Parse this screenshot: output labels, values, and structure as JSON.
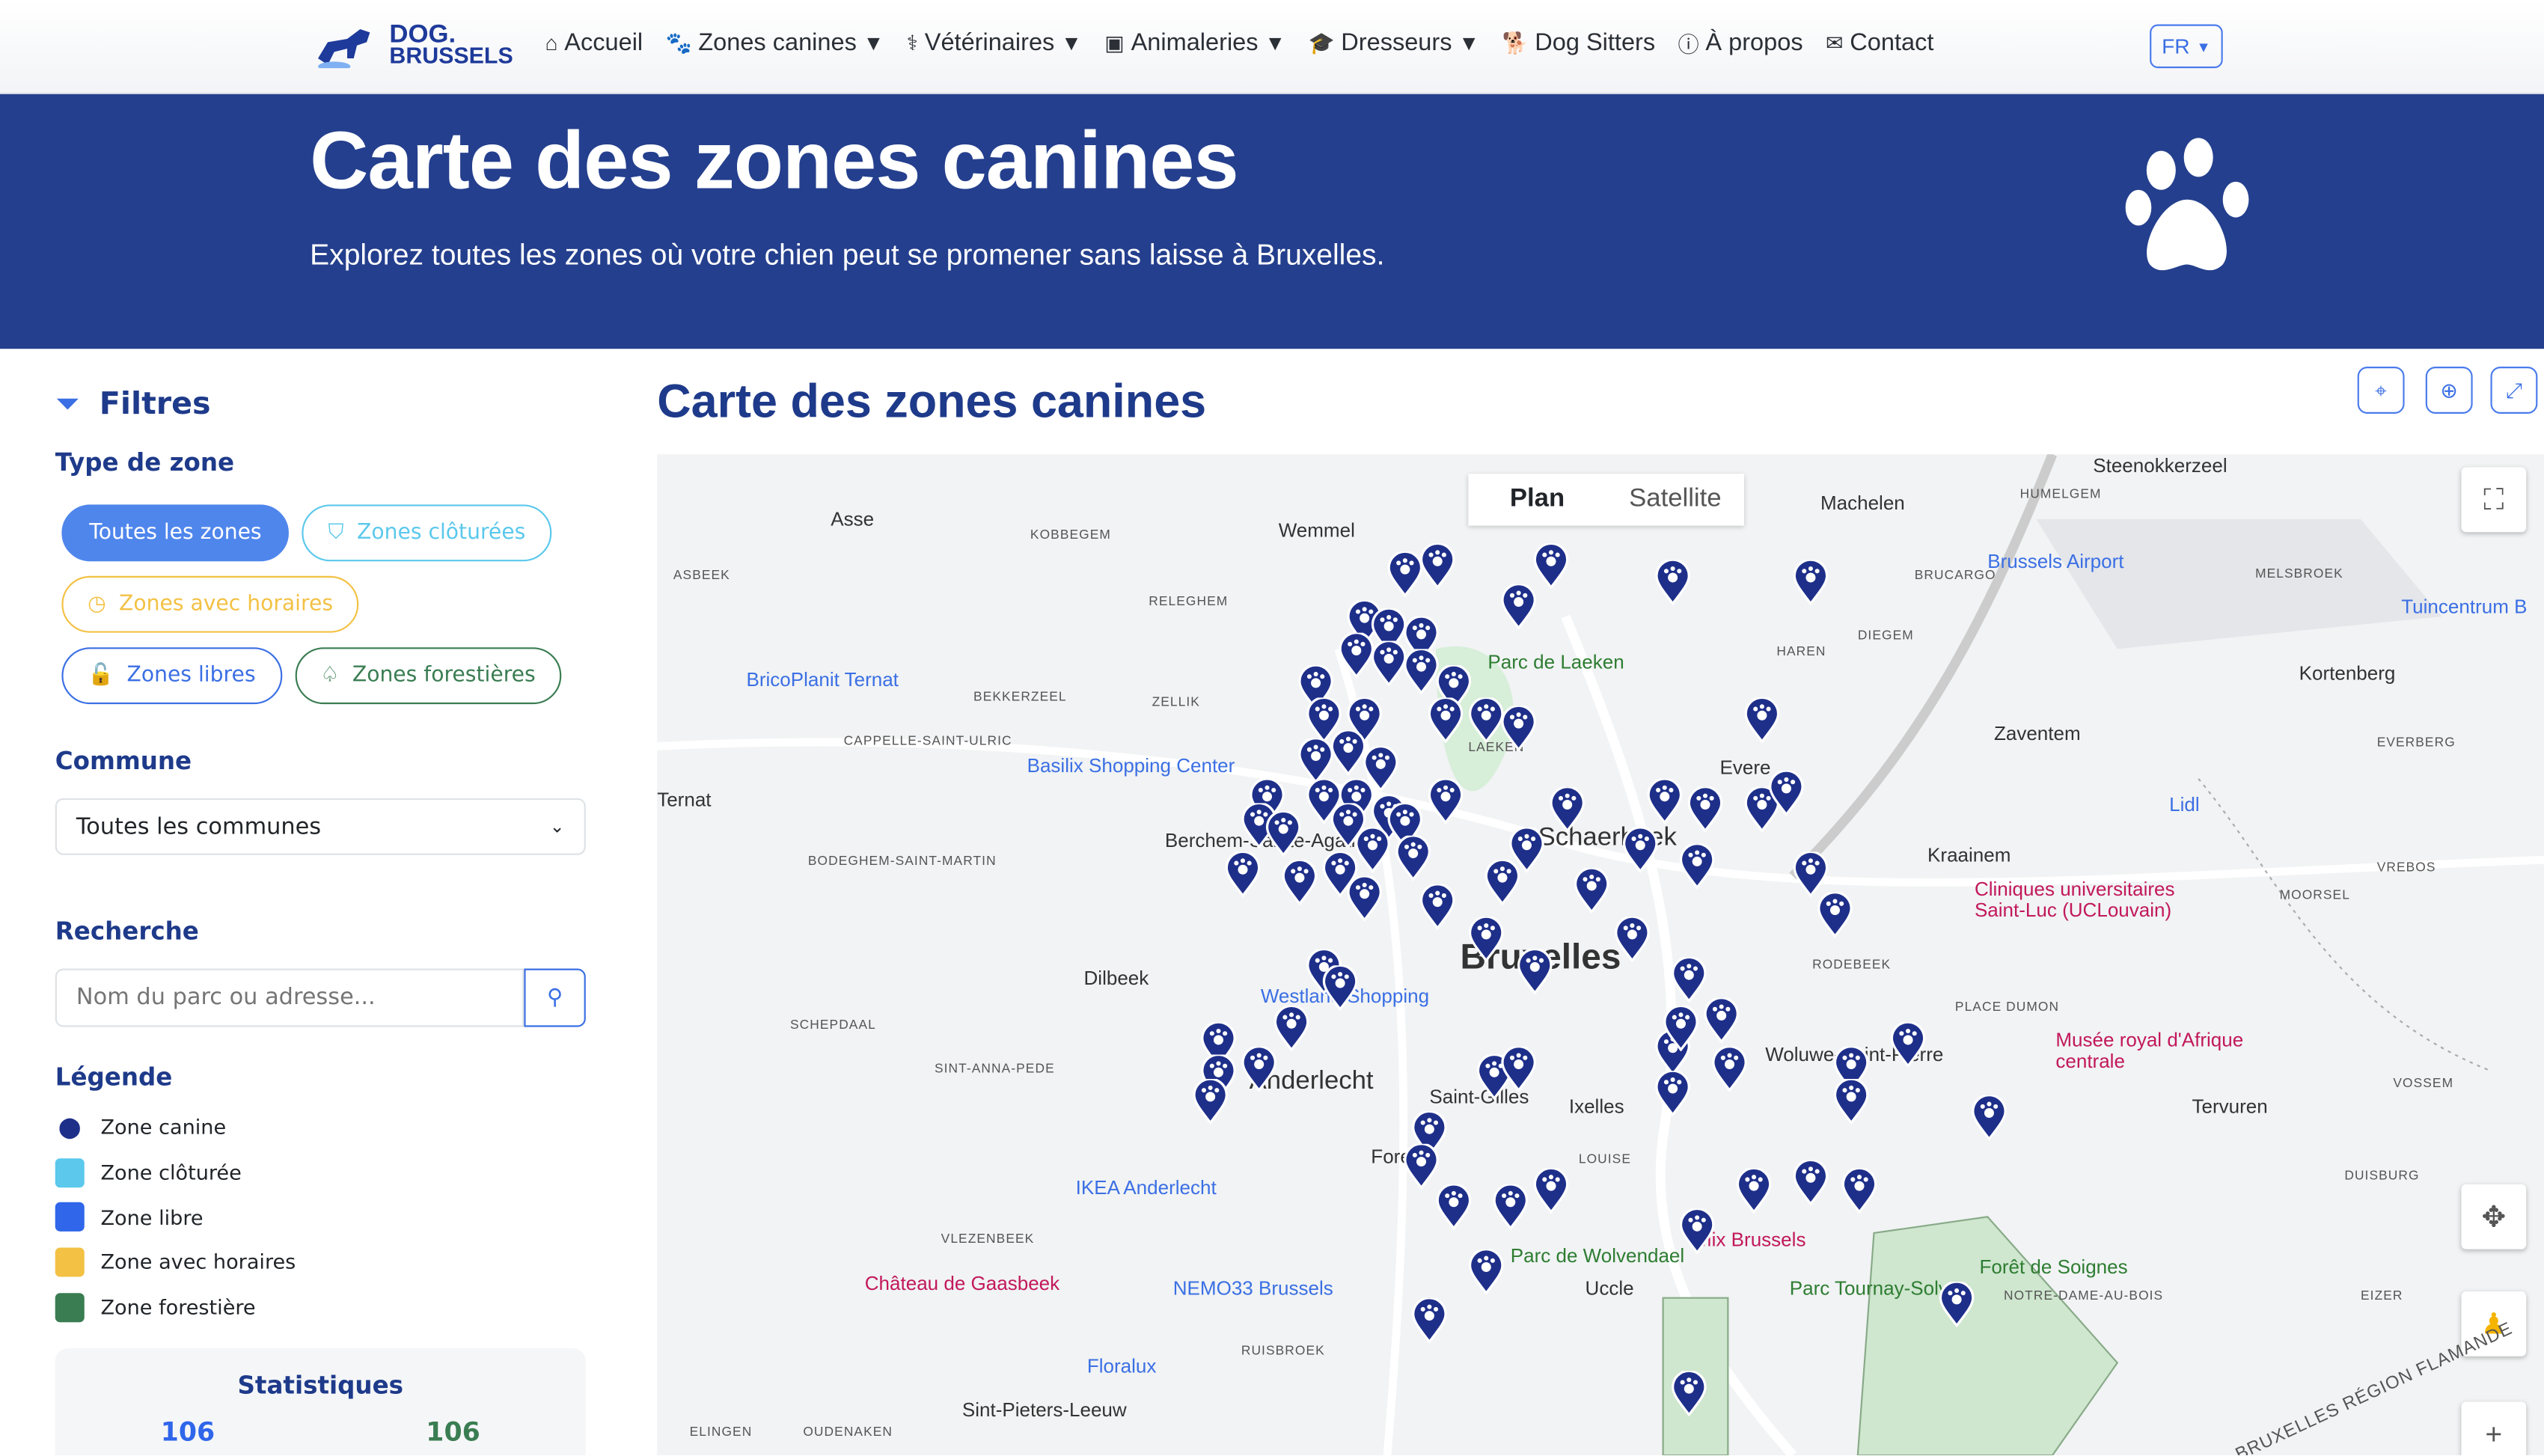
{
  "nav": {
    "logo_top": "DOG.",
    "logo_bottom": "BRUSSELS",
    "items": [
      {
        "label": "Accueil",
        "icon": "home-icon",
        "dropdown": false
      },
      {
        "label": "Zones canines",
        "icon": "paw-icon",
        "dropdown": true
      },
      {
        "label": "Vétérinaires",
        "icon": "stethoscope-icon",
        "dropdown": true
      },
      {
        "label": "Animaleries",
        "icon": "store-icon",
        "dropdown": true
      },
      {
        "label": "Dresseurs",
        "icon": "graduation-cap-icon",
        "dropdown": true
      },
      {
        "label": "Dog Sitters",
        "icon": "dog-icon",
        "dropdown": false
      },
      {
        "label": "À propos",
        "icon": "info-icon",
        "dropdown": false
      },
      {
        "label": "Contact",
        "icon": "envelope-icon",
        "dropdown": false
      }
    ],
    "lang": "FR"
  },
  "hero": {
    "title": "Carte des zones canines",
    "subtitle": "Explorez toutes les zones où votre chien peut se promener sans laisse à Bruxelles."
  },
  "filters": {
    "title": "Filtres",
    "zone_type_label": "Type de zone",
    "zone_buttons": [
      {
        "label": "Toutes les zones",
        "color": "#4f86ec",
        "active": true
      },
      {
        "label": "Zones clôturées",
        "color": "#5bc8ec",
        "icon": "shield-icon"
      },
      {
        "label": "Zones avec horaires",
        "color": "#f3c144",
        "icon": "clock-icon"
      },
      {
        "label": "Zones libres",
        "color": "#3b6fe4",
        "icon": "unlock-icon"
      },
      {
        "label": "Zones forestières",
        "color": "#3a7d52",
        "icon": "tree-icon"
      }
    ],
    "commune_label": "Commune",
    "commune_value": "Toutes les communes",
    "search_label": "Recherche",
    "search_placeholder": "Nom du parc ou adresse...",
    "legend_label": "Légende",
    "legend": [
      {
        "label": "Zone canine",
        "icon": "paw-marker-icon"
      },
      {
        "label": "Zone clôturée",
        "color": "#5bc8ec"
      },
      {
        "label": "Zone libre",
        "color": "#2f66ea"
      },
      {
        "label": "Zone avec horaires",
        "color": "#f3c144"
      },
      {
        "label": "Zone forestière",
        "color": "#3a7d52"
      }
    ],
    "stats_title": "Statistiques",
    "stats": [
      "106",
      "106"
    ]
  },
  "map": {
    "title": "Carte des zones canines",
    "tabs": [
      "Plan",
      "Satellite"
    ],
    "labels": [
      "Asse",
      "Wemmel",
      "Machelen",
      "Steenokkerzeel",
      "Dilbeek",
      "Anderlecht",
      "Bruxelles",
      "Schaerbeek",
      "Ixelles",
      "Uccle",
      "Zaventem",
      "Kraainem",
      "Kortenberg",
      "Tervuren",
      "Woluwe-Saint-Pierre",
      "Saint-Gilles",
      "Forest",
      "Evere",
      "Ternat",
      "Berchem-Sainte-Agathe",
      "Sint-Pieters-Leeuw"
    ],
    "small_labels": [
      "KOBBEGEM",
      "ASBEEK",
      "RELEGHEM",
      "ZELLIK",
      "BEKKERZEEL",
      "CAPPELLE-SAINT-ULRIC",
      "BODEGHEM-SAINT-MARTIN",
      "SCHEPDAAL",
      "SINT-ANNA-PEDE",
      "VLEZENBEEK",
      "RUISBROEK",
      "OUDENAKEN",
      "ELINGEN",
      "LAEKEN",
      "HAREN",
      "DIEGEM",
      "BRUCARGO",
      "HUMELGEM",
      "MELSBROEK",
      "EVERBERG",
      "VREBOS",
      "MOORSEL",
      "PLACE DUMON",
      "VOSSEM",
      "DUISBURG",
      "EIZER",
      "NOTRE-DAME-AU-BOIS",
      "LOUISE",
      "RODEBEEK"
    ],
    "pois": [
      {
        "label": "BricoPlanit Ternat",
        "kind": "shop"
      },
      {
        "label": "Basilix Shopping Center",
        "kind": "shop"
      },
      {
        "label": "Westland Shopping",
        "kind": "shop"
      },
      {
        "label": "IKEA Anderlecht",
        "kind": "shop"
      },
      {
        "label": "Château de Gaasbeek",
        "kind": "attraction"
      },
      {
        "label": "NEMO33 Brussels",
        "kind": "place"
      },
      {
        "label": "Floralux",
        "kind": "shop"
      },
      {
        "label": "Brussels Airport",
        "kind": "airport"
      },
      {
        "label": "Lidl",
        "kind": "shop"
      },
      {
        "label": "Cliniques universitaires Saint-Luc (UCLouvain)",
        "kind": "hospital"
      },
      {
        "label": "Musée royal d'Afrique centrale",
        "kind": "museum"
      },
      {
        "label": "Parc de Laeken",
        "kind": "park"
      },
      {
        "label": "Parc de Wolvendael",
        "kind": "park"
      },
      {
        "label": "Parc Tournay-Solvay",
        "kind": "park"
      },
      {
        "label": "Forêt de Soignes",
        "kind": "park"
      },
      {
        "label": "Mix Brussels",
        "kind": "hotel"
      },
      {
        "label": "Tuincentrum B",
        "kind": "shop"
      }
    ],
    "region_label": "BRUXELLES RÉGION FLAMANDE"
  }
}
